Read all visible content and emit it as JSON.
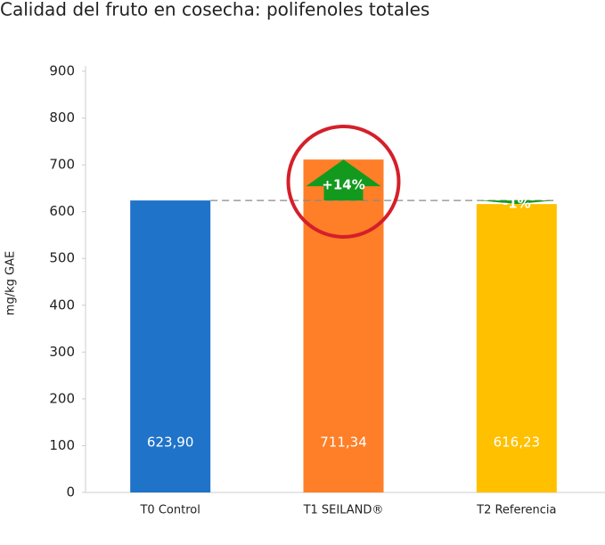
{
  "chart_data": {
    "type": "bar",
    "title": "Calidad del fruto en cosecha: polifenoles totales",
    "y_label": "mg/kg GAE",
    "categories": [
      "T0 Control",
      "T1 SEILAND®",
      "T2 Referencia"
    ],
    "values": [
      623.9,
      711.34,
      616.23
    ],
    "value_labels": [
      "623,90",
      "711,34",
      "616,23"
    ],
    "colors": [
      "#1f73c9",
      "#fe7f28",
      "#ffc000"
    ],
    "annotations": [
      "+14%",
      "-1%"
    ],
    "ylim": [
      0,
      900
    ],
    "yticks": [
      0,
      100,
      200,
      300,
      400,
      500,
      600,
      700,
      800,
      900
    ],
    "grid": false
  }
}
